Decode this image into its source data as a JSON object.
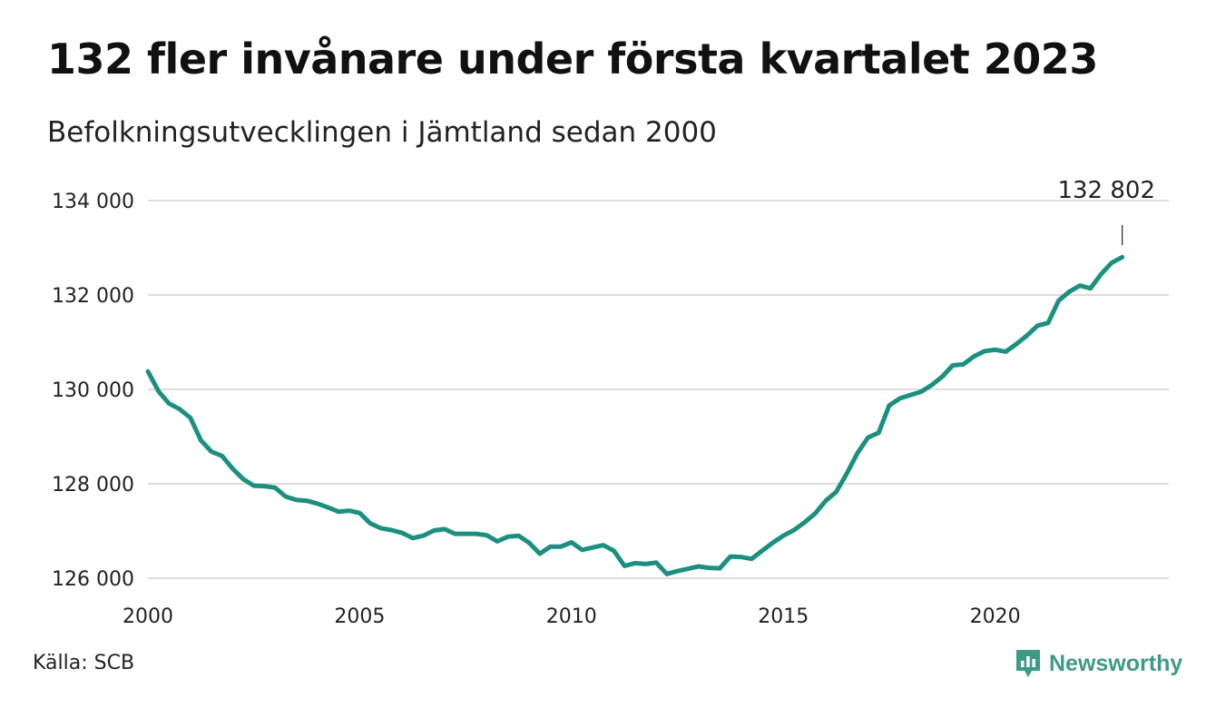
{
  "title": "132 fler invånare under första kvartalet 2023",
  "subtitle": "Befolkningsutvecklingen i Jämtland sedan 2000",
  "source": "Källa: SCB",
  "brand": {
    "name": "Newsworthy",
    "icon": "newsworthy-logo-icon",
    "color": "#3e9a86"
  },
  "colors": {
    "line": "#1b9080",
    "grid": "#dddddd",
    "text": "#222222"
  },
  "chart_data": {
    "type": "line",
    "title": "132 fler invånare under första kvartalet 2023",
    "subtitle": "Befolkningsutvecklingen i Jämtland sedan 2000",
    "xlabel": "",
    "ylabel": "",
    "grid": true,
    "xlim": [
      2000,
      2024.1
    ],
    "ylim": [
      126000,
      134000
    ],
    "x_ticks": [
      2000,
      2005,
      2010,
      2015,
      2020
    ],
    "x_tick_labels": [
      "2000",
      "2005",
      "2010",
      "2015",
      "2020"
    ],
    "y_ticks": [
      126000,
      128000,
      130000,
      132000,
      134000
    ],
    "y_tick_labels": [
      "126 000",
      "128 000",
      "130 000",
      "132 000",
      "134 000"
    ],
    "annotations": [
      {
        "x": 2023.0,
        "y": 132802,
        "text": "132 802"
      }
    ],
    "series": [
      {
        "x": [
          2000.0,
          2000.25,
          2000.5,
          2000.75,
          2001.0,
          2001.25,
          2001.5,
          2001.75,
          2002.0,
          2002.25,
          2002.5,
          2002.75,
          2003.0,
          2003.25,
          2003.5,
          2003.75,
          2004.0,
          2004.25,
          2004.5,
          2004.75,
          2005.0,
          2005.25,
          2005.5,
          2005.75,
          2006.0,
          2006.25,
          2006.5,
          2006.75,
          2007.0,
          2007.25,
          2007.5,
          2007.75,
          2008.0,
          2008.25,
          2008.5,
          2008.75,
          2009.0,
          2009.25,
          2009.5,
          2009.75,
          2010.0,
          2010.25,
          2010.5,
          2010.75,
          2011.0,
          2011.25,
          2011.5,
          2011.75,
          2012.0,
          2012.25,
          2012.5,
          2012.75,
          2013.0,
          2013.25,
          2013.5,
          2013.75,
          2014.0,
          2014.25,
          2014.5,
          2014.75,
          2015.0,
          2015.25,
          2015.5,
          2015.75,
          2016.0,
          2016.25,
          2016.5,
          2016.75,
          2017.0,
          2017.25,
          2017.5,
          2017.75,
          2018.0,
          2018.25,
          2018.5,
          2018.75,
          2019.0,
          2019.25,
          2019.5,
          2019.75,
          2020.0,
          2020.25,
          2020.5,
          2020.75,
          2021.0,
          2021.25,
          2021.5,
          2021.75,
          2022.0,
          2022.25,
          2022.5,
          2022.75,
          2023.0
        ],
        "y": [
          130380,
          129960,
          129700,
          129580,
          129400,
          128920,
          128680,
          128590,
          128320,
          128100,
          127960,
          127950,
          127920,
          127730,
          127660,
          127640,
          127580,
          127500,
          127410,
          127430,
          127380,
          127160,
          127060,
          127020,
          126960,
          126850,
          126900,
          127010,
          127040,
          126940,
          126940,
          126940,
          126910,
          126780,
          126880,
          126900,
          126750,
          126520,
          126670,
          126670,
          126760,
          126600,
          126650,
          126700,
          126580,
          126260,
          126320,
          126300,
          126330,
          126090,
          126150,
          126200,
          126250,
          126220,
          126210,
          126460,
          126450,
          126410,
          126580,
          126750,
          126900,
          127020,
          127180,
          127370,
          127640,
          127830,
          128220,
          128650,
          128980,
          129080,
          129660,
          129810,
          129880,
          129950,
          130090,
          130270,
          130510,
          130530,
          130700,
          130810,
          130840,
          130800,
          130960,
          131140,
          131350,
          131410,
          131880,
          132070,
          132200,
          132140,
          132440,
          132680,
          132802
        ]
      }
    ]
  }
}
